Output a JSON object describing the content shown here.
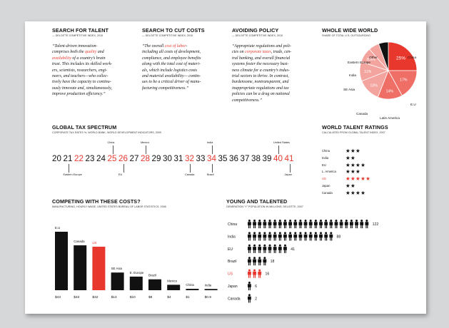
{
  "panels": {
    "talent": {
      "title": "SEARCH FOR TALENT",
      "source": "— DELOITTE COMPETITIVE INDEX, 2010",
      "lines": [
        [
          "“Talent-driven innovation-"
        ],
        [
          "comprises both the ",
          {
            "red": "quality"
          },
          " and"
        ],
        [
          {
            "red": "availability"
          },
          " of a country’s brain"
        ],
        [
          "trust. This includes its skilled work-"
        ],
        [
          "ers, scientists, researchers, engi-"
        ],
        [
          "neers, and teachers—who collec-"
        ],
        [
          "tively have the capacity to continu-"
        ],
        [
          "ously innovate and, simultaneously,"
        ],
        [
          "improve production efficiency.”"
        ]
      ]
    },
    "costs": {
      "title": "SEARCH TO CUT COSTS",
      "source": "— DELOITTE COMPETITIVE INDEX, 2010",
      "lines": [
        [
          "“The overall ",
          {
            "red": "cost of labor"
          },
          "-"
        ],
        [
          "including all costs of development,"
        ],
        [
          "compliance, and employee benefits"
        ],
        [
          "along with the total cost of materi-"
        ],
        [
          "als, which include logistics costs"
        ],
        [
          "and material availability— contin-"
        ],
        [
          "ues to be a critical driver of manu-"
        ],
        [
          "facturing competitiveness.”"
        ]
      ]
    },
    "policy": {
      "title": "AVOIDING POLICY",
      "source": "— DELOITTE COMPETITIVE INDEX, 2010",
      "lines": [
        [
          "“Appropriate regulations and poli-"
        ],
        [
          "cies on ",
          {
            "red": "corporate taxes"
          },
          ", trade, cen-"
        ],
        [
          "tral banking, and overall financial"
        ],
        [
          "systems foster the necessary busi-"
        ],
        [
          "ness climate for a country’s indus-"
        ],
        [
          "trial sectors to thrive. In contrast,"
        ],
        [
          "burdensome, nontransparent, and"
        ],
        [
          "inappropriate regulations and tax"
        ],
        [
          "policies can be a drag on national"
        ],
        [
          "competitiveness.”"
        ]
      ]
    }
  },
  "world": {
    "title": "WHOLE WIDE WORLD",
    "subtitle": "SHARE OF TOTAL U.S. OUTSOURCING",
    "colors": {
      "dark": "#e8382e",
      "mid": "#ef6f66",
      "light": "#f4a49e",
      "black": "#111111"
    }
  },
  "tax": {
    "title": "GLOBAL TAX SPECTRUM",
    "subtitle": "CORPORATE TAX RATES %, WORLD BANK, WORLD DEVELOPMENT INDICATORS, 2009",
    "numbers": [
      {
        "v": "20",
        "red": false
      },
      {
        "v": "21",
        "red": false
      },
      {
        "v": "22",
        "red": true
      },
      {
        "v": "23",
        "red": false
      },
      {
        "v": "24",
        "red": false
      },
      {
        "v": "25",
        "red": true
      },
      {
        "v": "26",
        "red": true
      },
      {
        "v": "27",
        "red": false
      },
      {
        "v": "28",
        "red": true
      },
      {
        "v": "29",
        "red": false
      },
      {
        "v": "30",
        "red": false
      },
      {
        "v": "31",
        "red": false
      },
      {
        "v": "32",
        "red": true
      },
      {
        "v": "33",
        "red": false
      },
      {
        "v": "34",
        "red": true
      },
      {
        "v": "35",
        "red": false
      },
      {
        "v": "36",
        "red": false
      },
      {
        "v": "37",
        "red": false
      },
      {
        "v": "38",
        "red": false
      },
      {
        "v": "39",
        "red": false
      },
      {
        "v": "40",
        "red": true
      },
      {
        "v": "41",
        "red": true
      }
    ],
    "top_labels": [
      {
        "label": "China",
        "at": 5
      },
      {
        "label": "Mexico",
        "at": 8
      },
      {
        "label": "India",
        "at": 14
      },
      {
        "label": "United States",
        "at": 20
      }
    ],
    "bottom_labels": [
      {
        "label": "Eastern Europe",
        "at": 1
      },
      {
        "label": "EU",
        "at": 6
      },
      {
        "label": "Canada",
        "at": 12
      },
      {
        "label": "Brazil",
        "at": 14
      },
      {
        "label": "Japan",
        "at": 21
      }
    ]
  },
  "ratings": {
    "title": "WORLD TALENT RATINGS",
    "subtitle": "CALCULATED FROM GLOBAL TALENT INDEX, 2007",
    "rows": [
      {
        "country": "China",
        "stars": "★★★",
        "red": false
      },
      {
        "country": "India",
        "stars": "★★",
        "red": false
      },
      {
        "country": "EU",
        "stars": "★★★★",
        "red": false
      },
      {
        "country": "L. America",
        "stars": "★★★",
        "red": false
      },
      {
        "country": "US",
        "stars": "★★★★★",
        "red": true
      },
      {
        "country": "Japan",
        "stars": "★★",
        "red": false
      },
      {
        "country": "Canada",
        "stars": "★★★★",
        "red": false
      }
    ]
  },
  "wages": {
    "title": "COMPETING WITH THESE COSTS?",
    "subtitle": "MANUFACTURING, HOURLY WAGE, UNITED STATES BUREAU OF LABOR STATISTICS, 2008"
  },
  "young": {
    "title": "YOUNG AND TALENTED",
    "subtitle": "GENERATION “Y” POPULATION IN MILLIONS, DELOITTE, 2007"
  },
  "chart_data": [
    {
      "type": "pie",
      "title": "WHOLE WIDE WORLD",
      "subtitle": "SHARE OF TOTAL U.S. OUTSOURCING",
      "slices": [
        {
          "label": "China",
          "value": 25,
          "display": "25%",
          "color": "#e8382e"
        },
        {
          "label": "E.U",
          "value": 17,
          "display": "17%",
          "color": "#ef6f66"
        },
        {
          "label": "Latin America",
          "value": 14,
          "display": "14%",
          "color": "#ef6f66"
        },
        {
          "label": "Canada",
          "value": 13,
          "display": "13%",
          "color": "#f4a49e"
        },
        {
          "label": "SE Asia",
          "value": 11,
          "display": "11%",
          "color": "#f4a49e"
        },
        {
          "label": "India",
          "value": 8.5,
          "display": "8.5%",
          "color": "#f4a49e"
        },
        {
          "label": "Eastern Europe",
          "value": 6,
          "display": "",
          "color": "#f4a49e"
        },
        {
          "label": "Other",
          "value": 5.5,
          "display": "",
          "color": "#111111"
        }
      ]
    },
    {
      "type": "bar",
      "title": "COMPETING WITH THESE COSTS?",
      "subtitle": "MANUFACTURING, HOURLY WAGE, UNITED STATES BUREAU OF LABOR STATISTICS, 2008",
      "categories": [
        "E.U",
        "Canada",
        "US",
        "SE Asia",
        "E. Europe",
        "Brazil",
        "Mexico",
        "China",
        "India"
      ],
      "values": [
        43,
        33,
        32,
        13,
        10,
        8,
        4,
        1,
        0.9
      ],
      "value_labels": [
        "$43",
        "$33",
        "$32",
        "$13",
        "$10",
        "$8",
        "$4",
        "$1",
        "$0.9"
      ],
      "highlight": "US",
      "ylim": [
        0,
        43
      ]
    },
    {
      "type": "bar",
      "orientation": "horizontal",
      "title": "YOUNG AND TALENTED",
      "subtitle": "GENERATION “Y” POPULATION IN MILLIONS, DELOITTE, 2007",
      "categories": [
        "China",
        "India",
        "EU",
        "Brazil",
        "US",
        "Japan",
        "Canada"
      ],
      "values": [
        122,
        88,
        41,
        18,
        16,
        6,
        2
      ],
      "highlight": "US"
    }
  ]
}
